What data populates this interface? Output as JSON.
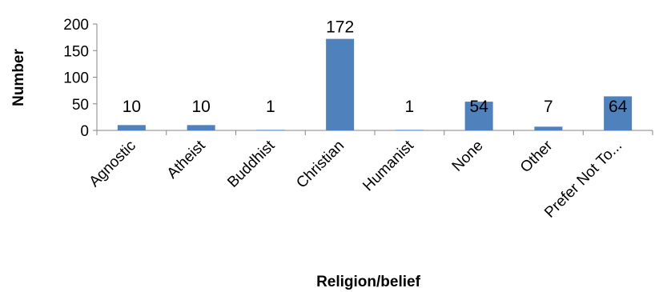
{
  "chart_data": {
    "type": "bar",
    "categories": [
      "Agnostic",
      "Atheist",
      "Buddhist",
      "Christian",
      "Humanist",
      "None",
      "Other",
      "Prefer Not To..."
    ],
    "values": [
      10,
      10,
      1,
      172,
      1,
      54,
      7,
      64
    ],
    "data_labels": [
      "10",
      "10",
      "1",
      "172",
      "1",
      "54",
      "7",
      "64"
    ],
    "xlabel": "Religion/belief",
    "ylabel": "Number",
    "ylim": [
      0,
      200
    ],
    "yticks": [
      0,
      50,
      100,
      150,
      200
    ],
    "ytick_labels": [
      "0",
      "50",
      "100",
      "150",
      "200"
    ],
    "grid": false,
    "legend": "none",
    "bar_color": "#4F81BD"
  }
}
